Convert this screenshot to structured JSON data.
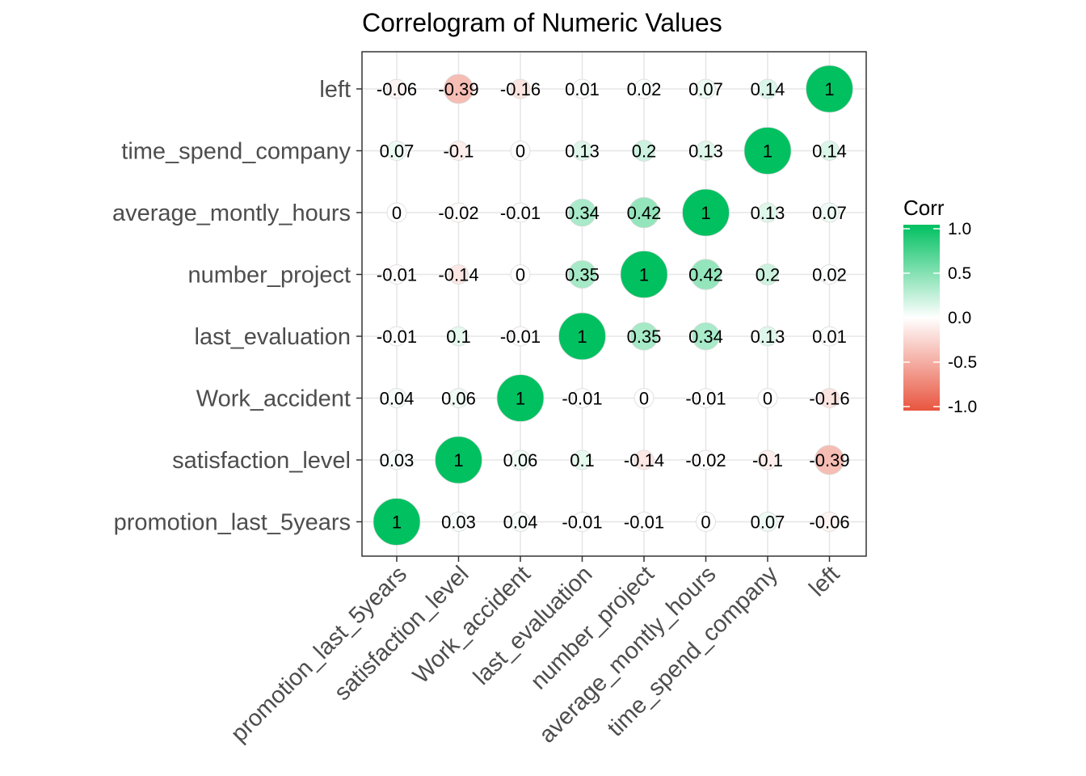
{
  "chart_data": {
    "type": "heatmap",
    "subtype": "correlogram-circles",
    "title": "Correlogram of Numeric Values",
    "xlabel": "",
    "ylabel": "",
    "variables": [
      "promotion_last_5years",
      "satisfaction_level",
      "Work_accident",
      "last_evaluation",
      "number_project",
      "average_montly_hours",
      "time_spend_company",
      "left"
    ],
    "y_order_top_to_bottom": [
      "left",
      "time_spend_company",
      "average_montly_hours",
      "number_project",
      "last_evaluation",
      "Work_accident",
      "satisfaction_level",
      "promotion_last_5years"
    ],
    "matrix": [
      [
        1,
        0.03,
        0.04,
        -0.01,
        -0.01,
        0,
        0.07,
        -0.06
      ],
      [
        0.03,
        1,
        0.06,
        0.1,
        -0.14,
        -0.02,
        -0.1,
        -0.39
      ],
      [
        0.04,
        0.06,
        1,
        -0.01,
        0,
        -0.01,
        0,
        -0.16
      ],
      [
        -0.01,
        0.1,
        -0.01,
        1,
        0.35,
        0.34,
        0.13,
        0.01
      ],
      [
        -0.01,
        -0.14,
        0,
        0.35,
        1,
        0.42,
        0.2,
        0.02
      ],
      [
        0,
        -0.02,
        -0.01,
        0.34,
        0.42,
        1,
        0.13,
        0.07
      ],
      [
        0.07,
        -0.1,
        0,
        0.13,
        0.2,
        0.13,
        1,
        0.14
      ],
      [
        -0.06,
        -0.39,
        -0.16,
        0.01,
        0.02,
        0.07,
        0.14,
        1
      ]
    ],
    "legend": {
      "title": "Corr",
      "ticks": [
        "1.0",
        "0.5",
        "0.0",
        "-0.5",
        "-1.0"
      ],
      "placement": "right",
      "colors": {
        "high": "#00c060",
        "mid": "#ffffff",
        "low": "#e8553f"
      }
    },
    "grid": true,
    "value_range": [
      -1,
      1
    ]
  }
}
